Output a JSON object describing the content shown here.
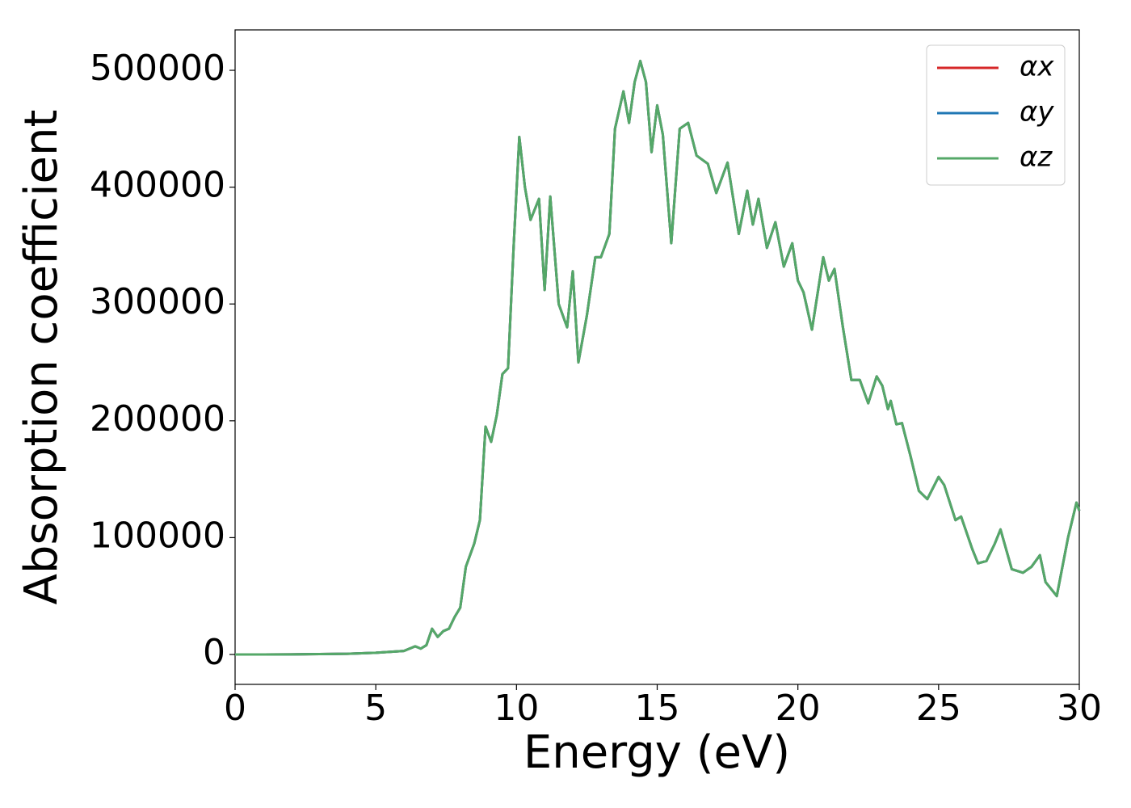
{
  "chart_data": {
    "type": "line",
    "x_label": "Energy (eV)",
    "y_label": "Absorption coefficient",
    "x": [
      0,
      1,
      2,
      3,
      4,
      5,
      6,
      6.4,
      6.6,
      6.8,
      7.0,
      7.2,
      7.4,
      7.6,
      7.8,
      8.0,
      8.2,
      8.5,
      8.7,
      8.9,
      9.1,
      9.3,
      9.5,
      9.7,
      9.9,
      10.1,
      10.3,
      10.5,
      10.8,
      11.0,
      11.2,
      11.5,
      11.8,
      12.0,
      12.2,
      12.5,
      12.8,
      13.0,
      13.3,
      13.5,
      13.8,
      14.0,
      14.2,
      14.4,
      14.6,
      14.8,
      15.0,
      15.2,
      15.5,
      15.8,
      16.1,
      16.4,
      16.8,
      17.1,
      17.5,
      17.9,
      18.2,
      18.4,
      18.6,
      18.9,
      19.2,
      19.5,
      19.8,
      20.0,
      20.2,
      20.5,
      20.9,
      21.1,
      21.3,
      21.6,
      21.9,
      22.2,
      22.5,
      22.8,
      23.0,
      23.2,
      23.3,
      23.5,
      23.7,
      24.0,
      24.3,
      24.6,
      25.0,
      25.2,
      25.6,
      25.8,
      26.2,
      26.4,
      26.7,
      27.0,
      27.2,
      27.6,
      28.0,
      28.3,
      28.6,
      28.8,
      29.2,
      29.6,
      29.9,
      30
    ],
    "series": [
      {
        "name": "αx",
        "color": "#d62728",
        "values": [
          0,
          0,
          100,
          300,
          600,
          1500,
          3000,
          7000,
          5000,
          8000,
          22000,
          15000,
          20000,
          22000,
          32000,
          40000,
          75000,
          95000,
          115000,
          195000,
          182000,
          205000,
          240000,
          245000,
          350000,
          443000,
          400000,
          372000,
          390000,
          312000,
          392000,
          300000,
          280000,
          328000,
          250000,
          290000,
          340000,
          340000,
          360000,
          450000,
          482000,
          455000,
          490000,
          508000,
          490000,
          430000,
          470000,
          445000,
          352000,
          450000,
          455000,
          427000,
          420000,
          395000,
          421000,
          360000,
          397000,
          368000,
          390000,
          348000,
          370000,
          332000,
          352000,
          320000,
          310000,
          278000,
          340000,
          320000,
          330000,
          280000,
          235000,
          235000,
          215000,
          238000,
          230000,
          210000,
          217000,
          197000,
          198000,
          170000,
          140000,
          133000,
          152000,
          145000,
          115000,
          118000,
          90000,
          78000,
          80000,
          95000,
          107000,
          73000,
          70000,
          75000,
          85000,
          62000,
          50000,
          100000,
          130000,
          123000
        ]
      },
      {
        "name": "αy",
        "color": "#1f77b4",
        "values": [
          0,
          0,
          100,
          300,
          600,
          1500,
          3000,
          7000,
          5000,
          8000,
          22000,
          15000,
          20000,
          22000,
          32000,
          40000,
          75000,
          95000,
          115000,
          195000,
          182000,
          205000,
          240000,
          245000,
          350000,
          443000,
          400000,
          372000,
          390000,
          312000,
          392000,
          300000,
          280000,
          328000,
          250000,
          290000,
          340000,
          340000,
          360000,
          450000,
          482000,
          455000,
          490000,
          508000,
          490000,
          430000,
          470000,
          445000,
          352000,
          450000,
          455000,
          427000,
          420000,
          395000,
          421000,
          360000,
          397000,
          368000,
          390000,
          348000,
          370000,
          332000,
          352000,
          320000,
          310000,
          278000,
          340000,
          320000,
          330000,
          280000,
          235000,
          235000,
          215000,
          238000,
          230000,
          210000,
          217000,
          197000,
          198000,
          170000,
          140000,
          133000,
          152000,
          145000,
          115000,
          118000,
          90000,
          78000,
          80000,
          95000,
          107000,
          73000,
          70000,
          75000,
          85000,
          62000,
          50000,
          100000,
          130000,
          123000
        ]
      },
      {
        "name": "αz",
        "color": "#55a868",
        "values": [
          0,
          0,
          100,
          300,
          600,
          1500,
          3000,
          7000,
          5000,
          8000,
          22000,
          15000,
          20000,
          22000,
          32000,
          40000,
          75000,
          95000,
          115000,
          195000,
          182000,
          205000,
          240000,
          245000,
          350000,
          443000,
          400000,
          372000,
          390000,
          312000,
          392000,
          300000,
          280000,
          328000,
          250000,
          290000,
          340000,
          340000,
          360000,
          450000,
          482000,
          455000,
          490000,
          508000,
          490000,
          430000,
          470000,
          445000,
          352000,
          450000,
          455000,
          427000,
          420000,
          395000,
          421000,
          360000,
          397000,
          368000,
          390000,
          348000,
          370000,
          332000,
          352000,
          320000,
          310000,
          278000,
          340000,
          320000,
          330000,
          280000,
          235000,
          235000,
          215000,
          238000,
          230000,
          210000,
          217000,
          197000,
          198000,
          170000,
          140000,
          133000,
          152000,
          145000,
          115000,
          118000,
          90000,
          78000,
          80000,
          95000,
          107000,
          73000,
          70000,
          75000,
          85000,
          62000,
          50000,
          100000,
          130000,
          123000
        ]
      }
    ],
    "xlim": [
      0,
      30
    ],
    "xticks": [
      0,
      5,
      10,
      15,
      20,
      25,
      30
    ],
    "ylim": [
      -25600,
      534600
    ],
    "yticks": [
      0,
      100000,
      200000,
      300000,
      400000,
      500000
    ],
    "grid": false,
    "legend": "upper right"
  }
}
